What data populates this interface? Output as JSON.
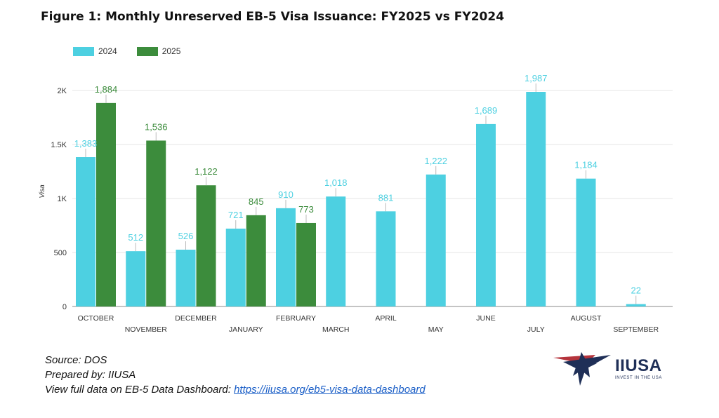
{
  "title": "Figure 1: Monthly Unreserved EB-5 Visa Issuance: FY2025 vs FY2024",
  "colors": {
    "series_2024": "#4dd0e1",
    "series_2025": "#3c8c3c",
    "label_2024": "#4dd0e1",
    "label_2025": "#3c8c3c",
    "grid": "#e6e6e6",
    "axis_text": "#333333",
    "logo_navy": "#1f2f57",
    "logo_red": "#b5343c"
  },
  "chart_data": {
    "type": "bar",
    "ylabel": "Visa",
    "ylim": [
      0,
      2000
    ],
    "yticks": [
      0,
      500,
      1000,
      1500,
      2000
    ],
    "ytick_labels": [
      "0",
      "500",
      "1K",
      "1.5K",
      "2K"
    ],
    "grid": true,
    "legend_position": "top-left",
    "categories": [
      "OCTOBER",
      "NOVEMBER",
      "DECEMBER",
      "JANUARY",
      "FEBRUARY",
      "MARCH",
      "APRIL",
      "MAY",
      "JUNE",
      "JULY",
      "AUGUST",
      "SEPTEMBER"
    ],
    "series": [
      {
        "name": "2024",
        "values": [
          1383,
          512,
          526,
          721,
          910,
          1018,
          881,
          1222,
          1689,
          1987,
          1184,
          22
        ],
        "labels": [
          "1,383",
          "512",
          "526",
          "721",
          "910",
          "1,018",
          "881",
          "1,222",
          "1,689",
          "1,987",
          "1,184",
          "22"
        ]
      },
      {
        "name": "2025",
        "values": [
          1884,
          1536,
          1122,
          845,
          773,
          null,
          null,
          null,
          null,
          null,
          null,
          null
        ],
        "labels": [
          "1,884",
          "1,536",
          "1,122",
          "845",
          "773",
          "",
          "",
          "",
          "",
          "",
          "",
          ""
        ]
      }
    ]
  },
  "footer": {
    "source": "Source: DOS",
    "prepared": "Prepared by: IIUSA",
    "view_prefix": "View full data on EB-5 Data Dashboard: ",
    "link_text": "https://iiusa.org/eb5-visa-data-dashboard"
  },
  "logo": {
    "name": "IIUSA",
    "tagline": "INVEST IN THE USA"
  }
}
